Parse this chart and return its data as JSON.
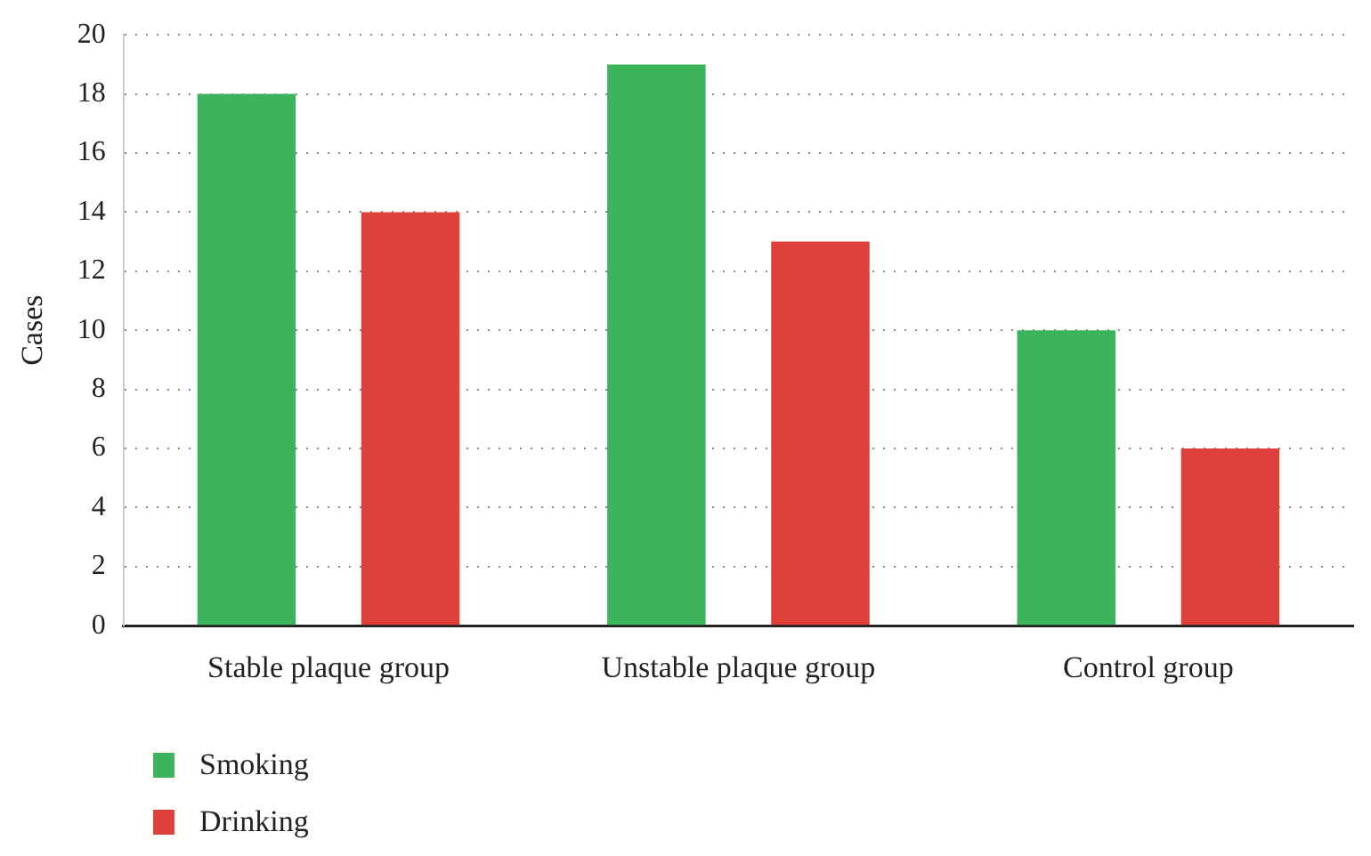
{
  "chart_data": {
    "type": "bar",
    "ylabel": "Cases",
    "categories": [
      "Stable plaque group",
      "Unstable plaque group",
      "Control group"
    ],
    "series": [
      {
        "name": "Smoking",
        "color": "#3cb45c",
        "values": [
          18,
          19,
          10
        ]
      },
      {
        "name": "Drinking",
        "color": "#e0403a",
        "values": [
          14,
          13,
          6
        ]
      }
    ],
    "ylim": [
      0,
      20
    ],
    "yticks": [
      0,
      2,
      4,
      6,
      8,
      10,
      12,
      14,
      16,
      18,
      20
    ],
    "grid": "y",
    "legend": "bottom left"
  }
}
